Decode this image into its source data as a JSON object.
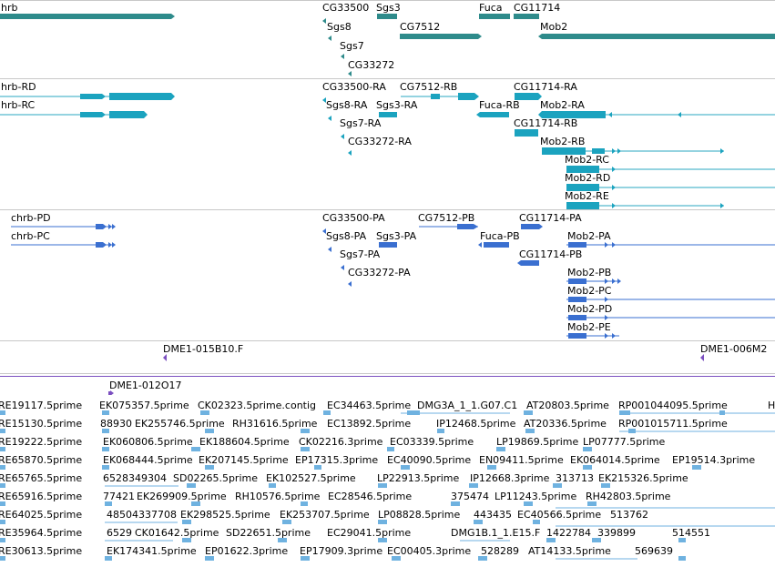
{
  "colors": {
    "gene": "#2e8b8b",
    "transcript": "#1ba3bf",
    "transcript_thin": "#2aa7c2",
    "cdna": "#3a6fd0",
    "clone": "#7b4fc0",
    "est": "#6fb2e0",
    "separator": "#c8c8c8"
  },
  "gene_track": {
    "labels": [
      "hrb",
      "CG33500",
      "Sgs3",
      "Fuca",
      "CG11714",
      "Sgs8",
      "CG7512",
      "Mob2",
      "Sgs7",
      "CG33272"
    ]
  },
  "transcript_track": {
    "labels": [
      "hrb-RD",
      "hrb-RC",
      "CG33500-RA",
      "CG7512-RB",
      "CG11714-RA",
      "Sgs8-RA",
      "Sgs3-RA",
      "Fuca-RB",
      "Mob2-RA",
      "Sgs7-RA",
      "CG11714-RB",
      "CG33272-RA",
      "Mob2-RB",
      "Mob2-RC",
      "Mob2-RD",
      "Mob2-RE"
    ]
  },
  "protein_track": {
    "labels": [
      "chrb-PD",
      "chrb-PC",
      "CG33500-PA",
      "CG7512-PB",
      "CG11714-PA",
      "Sgs8-PA",
      "Sgs3-PA",
      "Fuca-PB",
      "Mob2-PA",
      "Sgs7-PA",
      "CG11714-PB",
      "CG33272-PA",
      "Mob2-PB",
      "Mob2-PC",
      "Mob2-PD",
      "Mob2-PE"
    ]
  },
  "clone_track": {
    "labels": [
      "DME1-015B10.F",
      "DME1-006M2",
      "DME1-012O17"
    ]
  },
  "est_track": {
    "rows": [
      [
        "RE19117.5prime",
        "EK075357.5prime",
        "CK02323.5prime.contig",
        "EC34463.5prime",
        "DMG3A_1_1.G07.C1",
        "AT20803.5prime",
        "RP001044095.5prime",
        "H"
      ],
      [
        "RE15130.5prime",
        "88930",
        "EK255746.5prime",
        "RH31616.5prime",
        "EC13892.5prime",
        "IP12468.5prime",
        "AT20336.5prime",
        "RP001015711.5prime"
      ],
      [
        "RE19222.5prime",
        "EK060806.5prime",
        "EK188604.5prime",
        "CK02216.3prime",
        "EC03339.5prime",
        "LP19869.5prime",
        "LP07777.5prime"
      ],
      [
        "RE65870.5prime",
        "EK068444.5prime",
        "EK207145.5prime",
        "EP17315.3prime",
        "EC40090.5prime",
        "EN09411.5prime",
        "EK064014.5prime",
        "EP19514.3prime"
      ],
      [
        "RE65765.5prime",
        "6528349304",
        "SD02265.5prime",
        "EK102527.5prime",
        "LP22913.5prime",
        "IP12668.3prime",
        "313713",
        "EK215326.5prime"
      ],
      [
        "RE65916.5prime",
        "77421",
        "EK269909.5prime",
        "RH10576.5prime",
        "EC28546.5prime",
        "375474",
        "LP11243.5prime",
        "RH42803.5prime"
      ],
      [
        "RE64025.5prime",
        "48504337708",
        "EK298525.5prime",
        "EK253707.5prime",
        "LP08828.5prime",
        "443435",
        "EC40566.5prime",
        "513762"
      ],
      [
        "RE35964.5prime",
        "6529",
        "CK01642.5prime",
        "SD22651.5prime",
        "EC29041.5prime",
        "DMG1B.1_1.E15.F",
        "1422784",
        "339899",
        "514551"
      ],
      [
        "RE30613.5prime",
        "EK174341.5prime",
        "EP01622.3prime",
        "EP17909.3prime",
        "EC00405.3prime",
        "528289",
        "AT14133.5prime",
        "569639"
      ]
    ]
  }
}
